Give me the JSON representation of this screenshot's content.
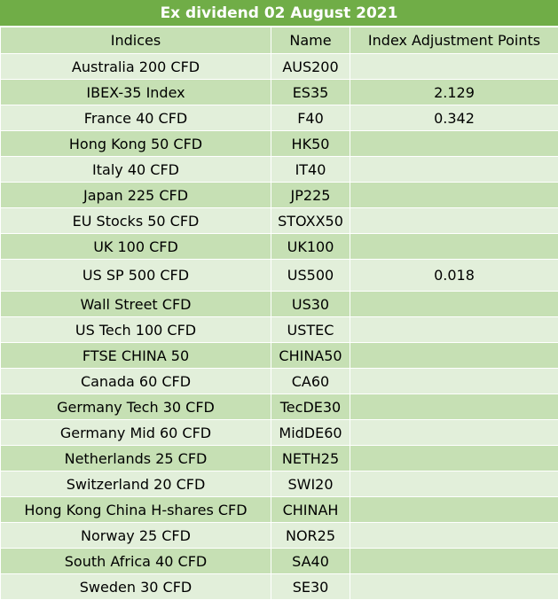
{
  "title": "Ex dividend 02 August 2021",
  "columns": [
    "Indices",
    "Name",
    "Index Adjustment Points"
  ],
  "rows": [
    {
      "index": "Australia 200 CFD",
      "name": "AUS200",
      "points": ""
    },
    {
      "index": "IBEX-35 Index",
      "name": "ES35",
      "points": "2.129"
    },
    {
      "index": "France 40 CFD",
      "name": "F40",
      "points": "0.342"
    },
    {
      "index": "Hong Kong 50 CFD",
      "name": "HK50",
      "points": ""
    },
    {
      "index": "Italy 40 CFD",
      "name": "IT40",
      "points": ""
    },
    {
      "index": "Japan 225 CFD",
      "name": "JP225",
      "points": ""
    },
    {
      "index": "EU Stocks 50 CFD",
      "name": "STOXX50",
      "points": ""
    },
    {
      "index": "UK 100 CFD",
      "name": "UK100",
      "points": ""
    },
    {
      "index": "US SP 500 CFD",
      "name": "US500",
      "points": "0.018"
    },
    {
      "index": "Wall Street CFD",
      "name": "US30",
      "points": ""
    },
    {
      "index": "US Tech 100 CFD",
      "name": "USTEC",
      "points": ""
    },
    {
      "index": "FTSE CHINA 50",
      "name": "CHINA50",
      "points": ""
    },
    {
      "index": "Canada 60 CFD",
      "name": "CA60",
      "points": ""
    },
    {
      "index": "Germany Tech 30 CFD",
      "name": "TecDE30",
      "points": ""
    },
    {
      "index": "Germany Mid 60 CFD",
      "name": "MidDE60",
      "points": ""
    },
    {
      "index": "Netherlands 25 CFD",
      "name": "NETH25",
      "points": ""
    },
    {
      "index": "Switzerland 20 CFD",
      "name": "SWI20",
      "points": ""
    },
    {
      "index": "Hong Kong China H-shares CFD",
      "name": "CHINAH",
      "points": ""
    },
    {
      "index": "Norway 25 CFD",
      "name": "NOR25",
      "points": ""
    },
    {
      "index": "South Africa 40 CFD",
      "name": "SA40",
      "points": ""
    },
    {
      "index": "Sweden 30 CFD",
      "name": "SE30",
      "points": ""
    }
  ],
  "colors": {
    "title_bg": "#70ad47",
    "dark_row": "#c6e0b4",
    "light_row": "#e2efda"
  }
}
